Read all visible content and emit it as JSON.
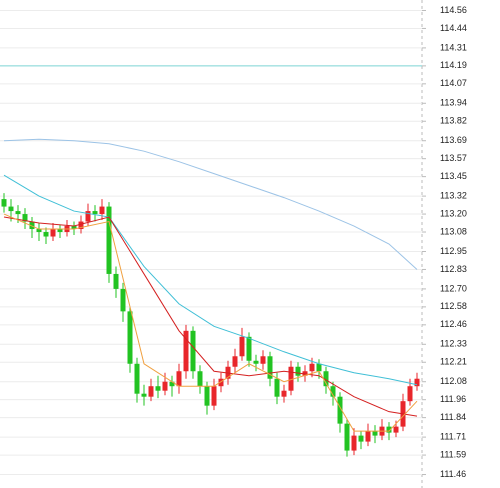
{
  "chart_data": {
    "type": "candlestick",
    "ylim": [
      111.37,
      114.63
    ],
    "yticks": [
      114.56,
      114.44,
      114.31,
      114.19,
      114.07,
      113.94,
      113.82,
      113.69,
      113.57,
      113.45,
      113.32,
      {
        "value": 113.2,
        "label": "113.20"
      },
      113.08,
      112.95,
      112.83,
      {
        "value": 112.7,
        "label": "112.70"
      },
      112.58,
      112.46,
      112.33,
      112.21,
      112.08,
      111.96,
      111.84,
      111.71,
      111.59,
      111.46
    ],
    "grid": true,
    "up_color": "#e8262b",
    "down_color": "#22c322",
    "hline": {
      "value": 114.19,
      "color": "#7fd8d8"
    },
    "open": [
      113.3,
      113.25,
      113.22,
      113.2,
      113.15,
      113.1,
      113.08,
      113.05,
      113.1,
      113.08,
      113.12,
      113.1,
      113.15,
      113.22,
      113.2,
      113.25,
      112.8,
      112.7,
      112.55,
      112.2,
      112.0,
      111.98,
      112.05,
      112.02,
      112.08,
      112.05,
      112.15,
      112.42,
      112.15,
      112.05,
      111.92,
      112.05,
      112.1,
      112.18,
      112.25,
      112.38,
      112.22,
      112.2,
      112.25,
      112.1,
      111.98,
      112.02,
      112.18,
      112.12,
      112.15,
      112.2,
      112.15,
      112.05,
      111.98,
      111.8,
      111.62,
      111.72,
      111.68,
      111.75,
      111.72,
      111.78,
      111.74,
      111.78,
      111.95,
      112.05
    ],
    "high": [
      113.34,
      113.3,
      113.26,
      113.24,
      113.18,
      113.14,
      113.11,
      113.14,
      113.13,
      113.16,
      113.15,
      113.19,
      113.27,
      113.26,
      113.3,
      113.28,
      112.85,
      112.74,
      112.58,
      112.24,
      112.06,
      112.1,
      112.12,
      112.14,
      112.12,
      112.2,
      112.46,
      112.45,
      112.19,
      112.08,
      112.1,
      112.14,
      112.22,
      112.3,
      112.44,
      112.41,
      112.26,
      112.29,
      112.28,
      112.14,
      112.06,
      112.22,
      112.21,
      112.19,
      112.24,
      112.23,
      112.18,
      112.08,
      112.01,
      111.83,
      111.77,
      111.75,
      111.8,
      111.79,
      111.83,
      111.81,
      111.82,
      112.0,
      112.1,
      112.14
    ],
    "low": [
      113.21,
      113.15,
      113.14,
      113.1,
      113.04,
      113.02,
      113.0,
      113.02,
      113.04,
      113.05,
      113.06,
      113.07,
      113.12,
      113.15,
      113.16,
      112.74,
      112.64,
      112.48,
      112.14,
      111.94,
      111.92,
      111.95,
      111.97,
      111.99,
      111.98,
      112.0,
      112.1,
      112.1,
      112.0,
      111.86,
      111.89,
      112.01,
      112.06,
      112.14,
      112.22,
      112.18,
      112.15,
      112.16,
      112.05,
      111.93,
      111.94,
      111.99,
      112.08,
      112.08,
      112.11,
      112.1,
      112.0,
      111.92,
      111.74,
      111.58,
      111.59,
      111.63,
      111.65,
      111.67,
      111.69,
      111.69,
      111.71,
      111.75,
      111.92,
      112.02
    ],
    "close": [
      113.25,
      113.22,
      113.2,
      113.15,
      113.1,
      113.08,
      113.05,
      113.1,
      113.08,
      113.12,
      113.1,
      113.15,
      113.22,
      113.2,
      113.25,
      112.8,
      112.7,
      112.55,
      112.2,
      112.0,
      111.98,
      112.05,
      112.02,
      112.08,
      112.05,
      112.15,
      112.42,
      112.15,
      112.05,
      111.92,
      112.05,
      112.1,
      112.18,
      112.25,
      112.38,
      112.22,
      112.2,
      112.25,
      112.1,
      111.98,
      112.02,
      112.18,
      112.12,
      112.15,
      112.2,
      112.15,
      112.05,
      111.98,
      111.8,
      111.62,
      111.72,
      111.68,
      111.75,
      111.72,
      111.78,
      111.74,
      111.78,
      111.95,
      112.05,
      112.1
    ],
    "ma_x": [
      0,
      5,
      10,
      15,
      20,
      25,
      30,
      35,
      40,
      45,
      50,
      55,
      59
    ],
    "ma": [
      {
        "color": "#9cc3e6",
        "values": [
          113.69,
          113.7,
          113.69,
          113.67,
          113.62,
          113.55,
          113.47,
          113.39,
          113.31,
          113.22,
          113.12,
          113.0,
          112.83
        ]
      },
      {
        "color": "#3fbfd6",
        "values": [
          113.46,
          113.32,
          113.22,
          113.18,
          112.85,
          112.6,
          112.45,
          112.37,
          112.28,
          112.2,
          112.14,
          112.1,
          112.06
        ]
      },
      {
        "color": "#d42020",
        "values": [
          113.18,
          113.14,
          113.12,
          113.18,
          112.8,
          112.42,
          112.15,
          112.12,
          112.15,
          112.12,
          111.98,
          111.88,
          111.85
        ]
      },
      {
        "color": "#f0a040",
        "values": [
          113.2,
          113.1,
          113.1,
          113.15,
          112.2,
          112.05,
          112.05,
          112.2,
          112.08,
          112.15,
          111.75,
          111.75,
          111.95
        ]
      }
    ]
  }
}
